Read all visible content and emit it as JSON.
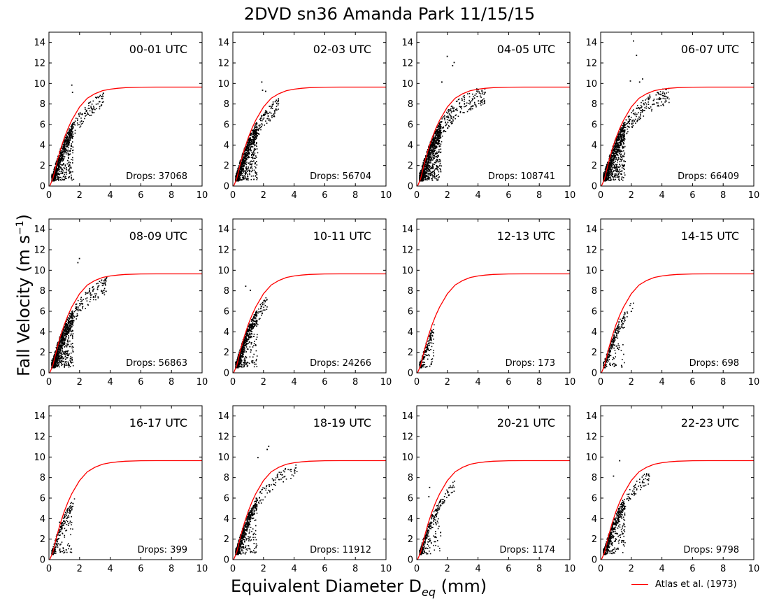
{
  "figure": {
    "title": "2DVD sn36 Amanda Park 11/15/15",
    "ylabel_text": "Fall Velocity (m s",
    "ylabel_sup": "−1",
    "ylabel_end": ")",
    "xlabel_text": "Equivalent Diameter D",
    "xlabel_sub": "eq",
    "xlabel_end": " (mm)",
    "legend_label": "Atlas et al. (1973)",
    "colors": {
      "curve": "#ff0000",
      "points": "#000000",
      "axes": "#000000"
    }
  },
  "chart_data": {
    "type": "scatter",
    "xlim": [
      0,
      10
    ],
    "ylim": [
      0,
      15
    ],
    "xticks": [
      0,
      2,
      4,
      6,
      8,
      10
    ],
    "yticks": [
      0,
      2,
      4,
      6,
      8,
      10,
      12,
      14
    ],
    "grid": false,
    "legend_placement": "bottom-right",
    "curve": {
      "name": "Atlas et al. (1973)",
      "color": "#ff0000",
      "x": [
        0.25,
        0.5,
        0.75,
        1,
        1.25,
        1.5,
        2,
        2.5,
        3,
        3.5,
        4,
        4.5,
        5,
        6,
        7,
        8,
        9,
        10
      ],
      "y": [
        0.7,
        2.24,
        3.56,
        4.69,
        5.64,
        6.44,
        7.71,
        8.56,
        9.0,
        9.3,
        9.44,
        9.53,
        9.59,
        9.64,
        9.65,
        9.65,
        9.65,
        9.65
      ]
    },
    "panels": [
      {
        "label": "00-01 UTC",
        "drops_text": "Drops: 37068",
        "drops": 37068,
        "dmax": 3.4,
        "density": 0.55,
        "outliers": [
          [
            1.45,
            9.9
          ],
          [
            1.5,
            9.2
          ]
        ]
      },
      {
        "label": "02-03 UTC",
        "drops_text": "Drops: 56704",
        "drops": 56704,
        "dmax": 2.8,
        "density": 0.65,
        "outliers": [
          [
            1.85,
            10.2
          ],
          [
            2.1,
            9.3
          ],
          [
            1.9,
            9.4
          ]
        ]
      },
      {
        "label": "04-05 UTC",
        "drops_text": "Drops: 108741",
        "drops": 108741,
        "dmax": 4.3,
        "density": 0.85,
        "outliers": [
          [
            1.95,
            12.7
          ],
          [
            2.4,
            12.1
          ],
          [
            2.3,
            11.8
          ],
          [
            1.6,
            10.2
          ]
        ]
      },
      {
        "label": "06-07 UTC",
        "drops_text": "Drops: 66409",
        "drops": 66409,
        "dmax": 4.3,
        "density": 0.75,
        "outliers": [
          [
            2.1,
            14.2
          ],
          [
            2.3,
            12.8
          ],
          [
            2.7,
            10.5
          ],
          [
            2.5,
            10.2
          ],
          [
            1.9,
            10.3
          ]
        ]
      },
      {
        "label": "08-09 UTC",
        "drops_text": "Drops: 56863",
        "drops": 56863,
        "dmax": 3.6,
        "density": 0.7,
        "outliers": [
          [
            1.95,
            11.2
          ],
          [
            1.85,
            10.8
          ]
        ]
      },
      {
        "label": "10-11 UTC",
        "drops_text": "Drops: 24266",
        "drops": 24266,
        "dmax": 2.1,
        "density": 0.45,
        "outliers": [
          [
            0.8,
            8.5
          ],
          [
            1.1,
            8.1
          ]
        ]
      },
      {
        "label": "12-13 UTC",
        "drops_text": "Drops: 173",
        "drops": 173,
        "dmax": 0.95,
        "density": 0.06,
        "outliers": []
      },
      {
        "label": "14-15 UTC",
        "drops_text": "Drops: 698",
        "drops": 698,
        "dmax": 2.1,
        "density": 0.1,
        "outliers": [
          [
            0.9,
            0.9
          ],
          [
            0.6,
            0.8
          ]
        ]
      },
      {
        "label": "16-17 UTC",
        "drops_text": "Drops: 399",
        "drops": 399,
        "dmax": 1.5,
        "density": 0.08,
        "outliers": [
          [
            0.7,
            0.8
          ],
          [
            0.65,
            3.7
          ]
        ]
      },
      {
        "label": "18-19 UTC",
        "drops_text": "Drops: 11912",
        "drops": 11912,
        "dmax": 4.1,
        "density": 0.4,
        "outliers": [
          [
            2.3,
            11.1
          ],
          [
            2.2,
            10.8
          ],
          [
            1.6,
            10.0
          ]
        ]
      },
      {
        "label": "20-21 UTC",
        "drops_text": "Drops: 1174",
        "drops": 1174,
        "dmax": 2.4,
        "density": 0.15,
        "outliers": [
          [
            0.8,
            7.1
          ],
          [
            0.75,
            6.2
          ]
        ]
      },
      {
        "label": "22-23 UTC",
        "drops_text": "Drops: 9798",
        "drops": 9798,
        "dmax": 3.0,
        "density": 0.35,
        "outliers": [
          [
            1.2,
            9.7
          ],
          [
            0.8,
            8.2
          ]
        ]
      }
    ]
  }
}
